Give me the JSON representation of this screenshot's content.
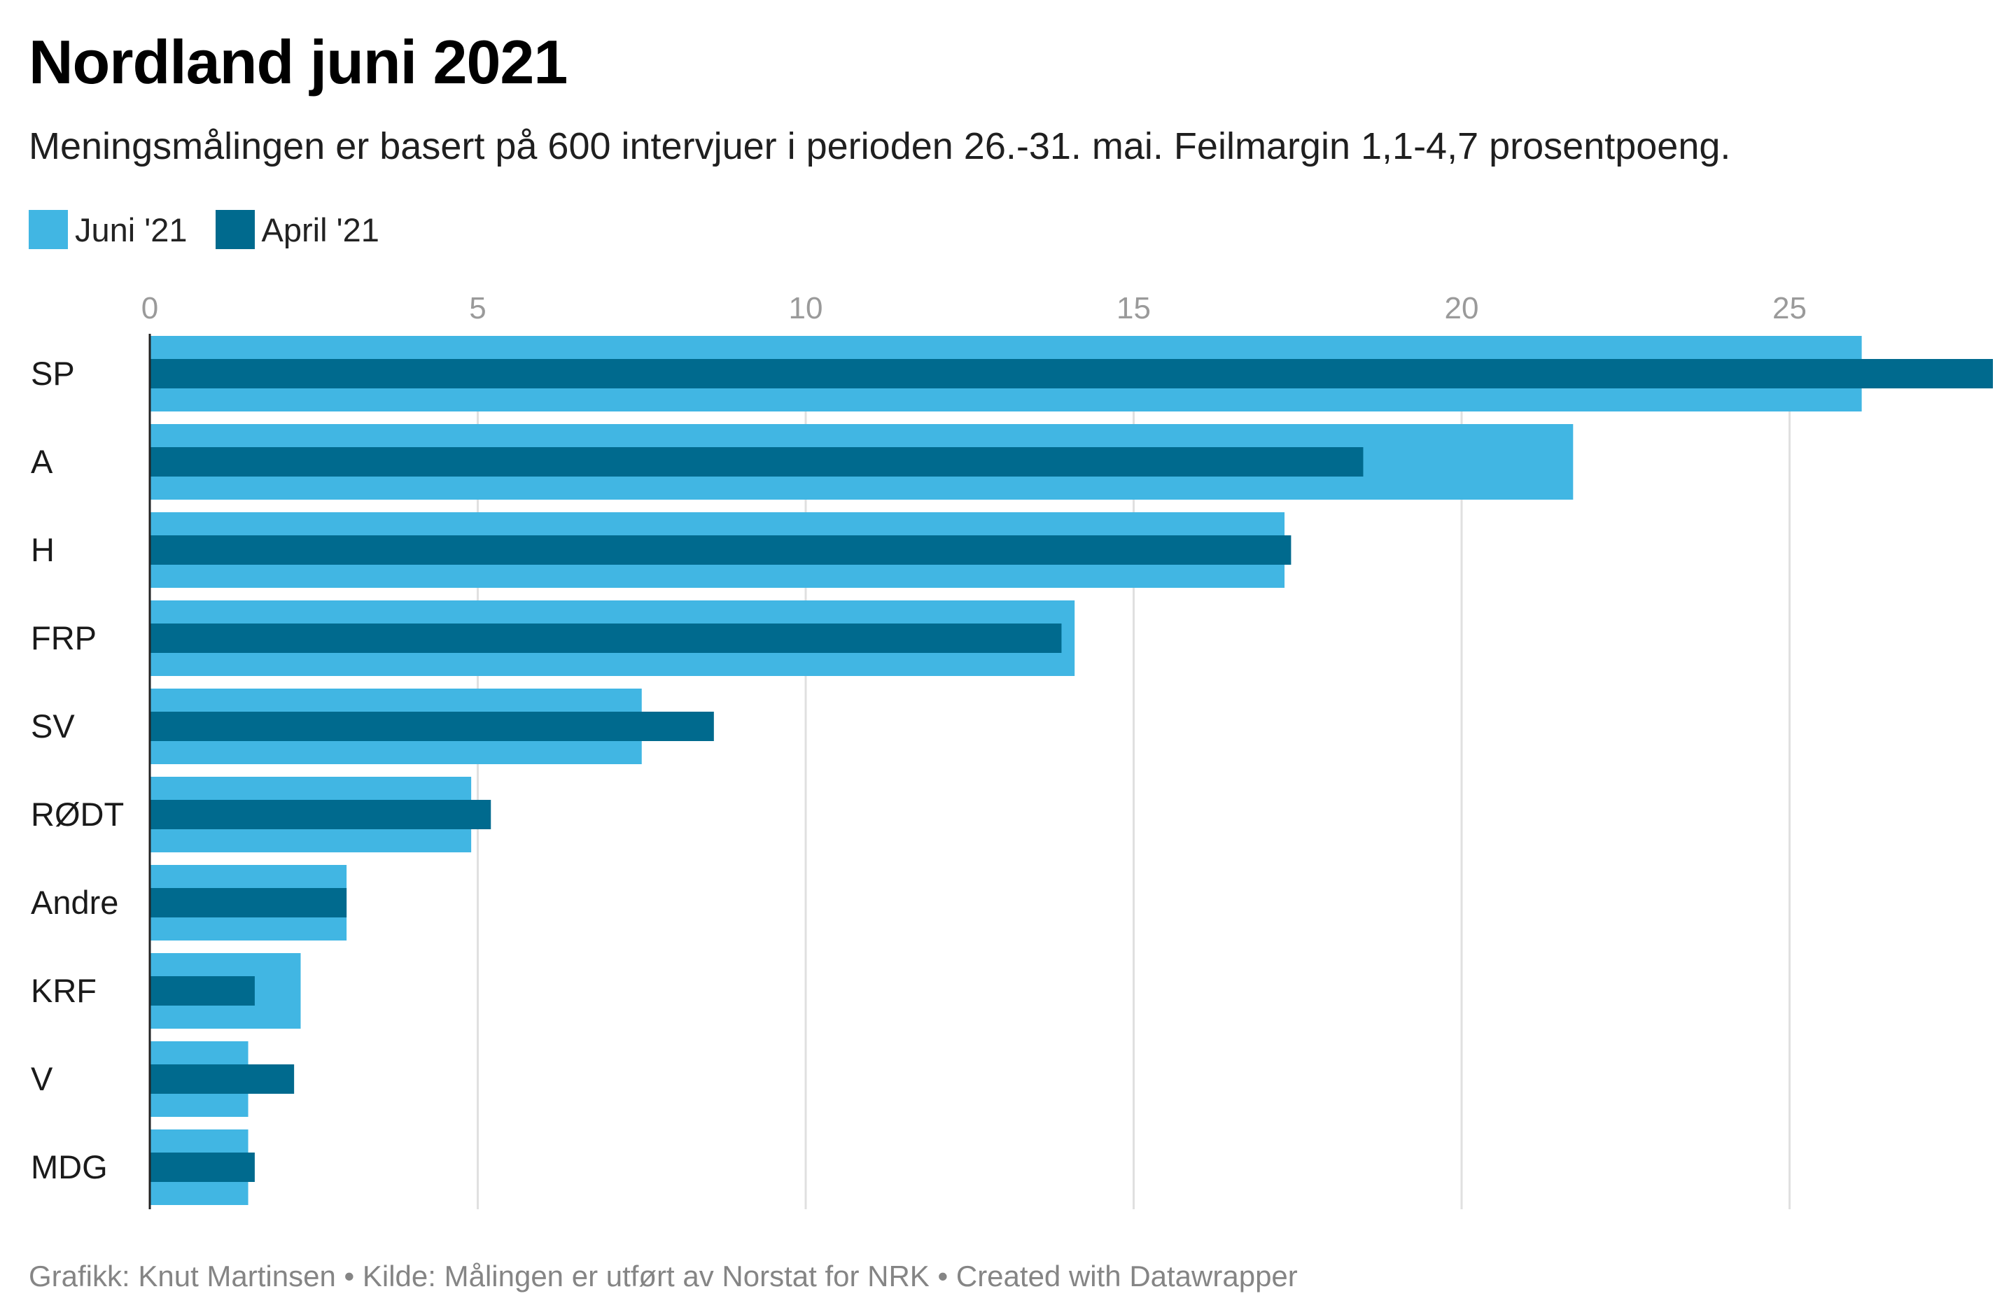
{
  "chart_data": {
    "type": "bar",
    "orientation": "horizontal",
    "title": "Nordland juni 2021",
    "subtitle": "Meningsmålingen er basert på 600 intervjuer i perioden 26.-31. mai. Feilmargin 1,1-4,7 prosentpoeng.",
    "categories": [
      "SP",
      "A",
      "H",
      "FRP",
      "SV",
      "RØDT",
      "Andre",
      "KRF",
      "V",
      "MDG"
    ],
    "series": [
      {
        "name": "Juni '21",
        "color": "#41b6e3",
        "values": [
          26.1,
          21.7,
          17.3,
          14.1,
          7.5,
          4.9,
          3.0,
          2.3,
          1.5,
          1.5
        ]
      },
      {
        "name": "April '21",
        "color": "#006a8e",
        "values": [
          28.1,
          18.5,
          17.4,
          13.9,
          8.6,
          5.2,
          3.0,
          1.6,
          2.2,
          1.6
        ]
      }
    ],
    "xlim": [
      0,
      28.1
    ],
    "xticks": [
      "0",
      "5",
      "10",
      "15",
      "20",
      "25"
    ],
    "tick_values": [
      0,
      5,
      10,
      15,
      20,
      25
    ],
    "grid": true,
    "legend_position": "top-left",
    "footer": "Grafikk: Knut Martinsen • Kilde: Målingen er utført av Norstat for NRK • Created with Datawrapper"
  }
}
